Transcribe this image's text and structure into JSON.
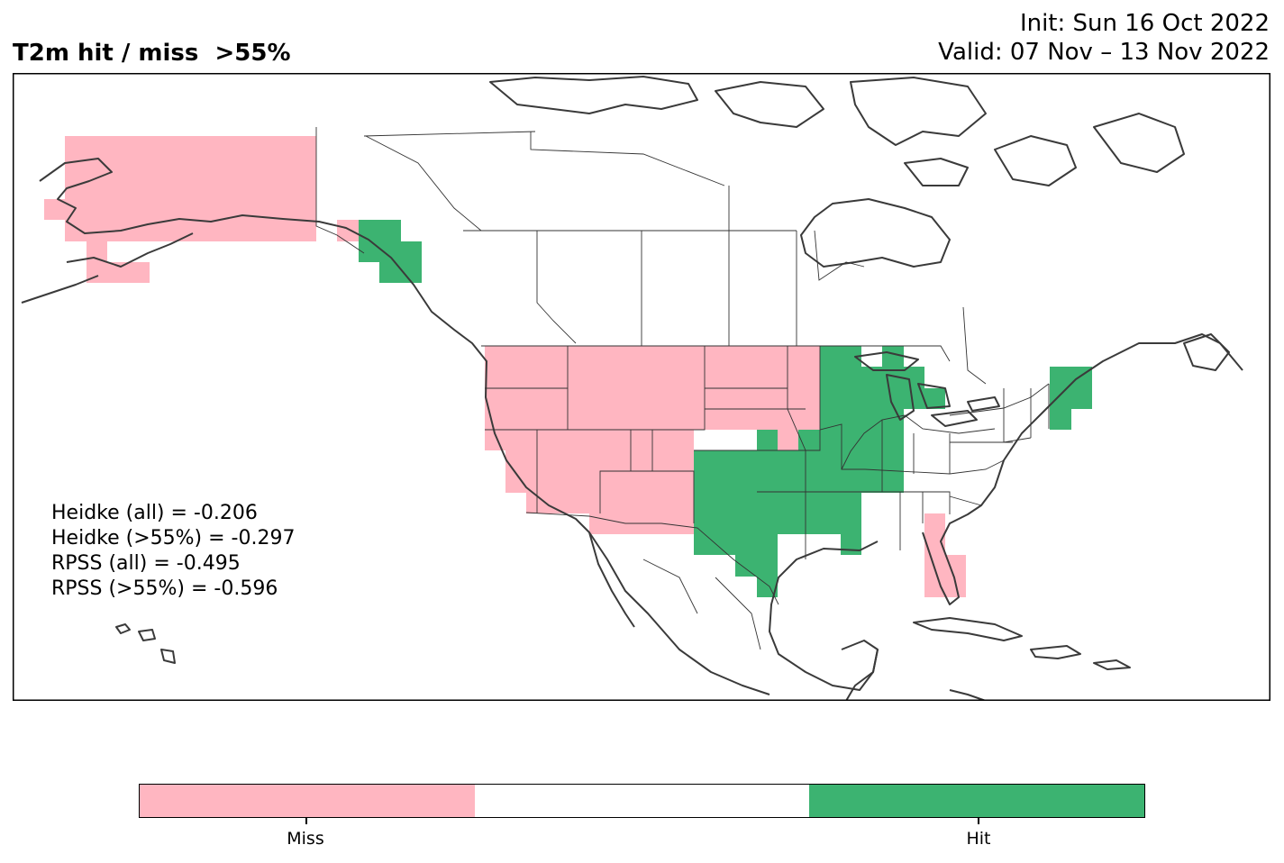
{
  "title": {
    "left": "T2m hit / miss  >55%",
    "init": "Init: Sun 16 Oct 2022",
    "valid": "Valid: 07 Nov – 13 Nov 2022"
  },
  "map": {
    "region": "North America",
    "colors": {
      "miss": "#ffb6c1",
      "neutral": "#ffffff",
      "hit": "#3cb371",
      "coast": "#3a3a3a",
      "border": "#333333"
    }
  },
  "scores": [
    "Heidke (all) = -0.206",
    "Heidke (>55%) = -0.297",
    "RPSS (all) = -0.495",
    "RPSS (>55%) = -0.596"
  ],
  "legend": {
    "categories": [
      "Miss",
      "",
      "Hit"
    ],
    "tick_labels": [
      "Miss",
      "Hit"
    ]
  }
}
